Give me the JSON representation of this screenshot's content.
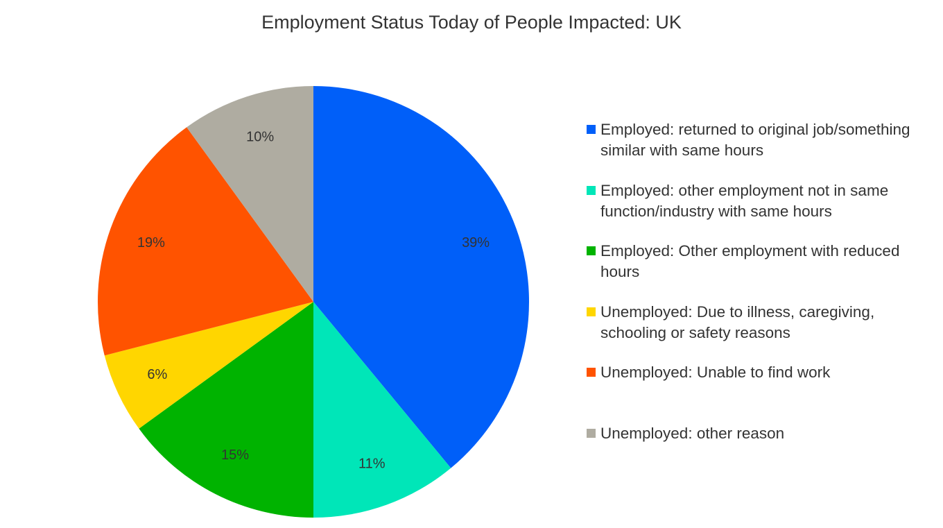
{
  "chart_data": {
    "type": "pie",
    "title": "Employment Status Today of People Impacted: UK",
    "categories": [
      "Employed: returned to original job/something similar with same hours",
      "Employed: other employment not in same function/industry with same hours",
      "Employed: Other employment with reduced hours",
      "Unemployed: Due to illness, caregiving, schooling or safety reasons",
      "Unemployed: Unable to find work",
      "Unemployed: other reason"
    ],
    "values": [
      39,
      11,
      15,
      6,
      19,
      10
    ],
    "value_labels": [
      "39%",
      "11%",
      "15%",
      "6%",
      "19%",
      "10%"
    ],
    "colors": [
      "#005ff9",
      "#00e6b8",
      "#00b300",
      "#ffd600",
      "#ff5300",
      "#afaca1"
    ],
    "legend": "right"
  }
}
